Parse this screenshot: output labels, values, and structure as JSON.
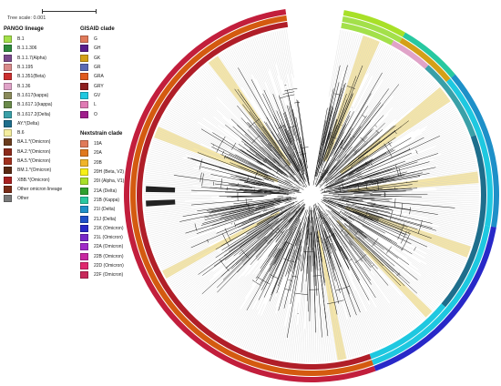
{
  "tree_scale": {
    "label": "Tree scale: 0.001"
  },
  "pango": {
    "title": "PANGO lineage",
    "items": [
      {
        "label": "B.1",
        "color": "#a3e04a"
      },
      {
        "label": "B.1.1.306",
        "color": "#2e8b3d"
      },
      {
        "label": "B.1.1.7(Alpha)",
        "color": "#7a4a8c"
      },
      {
        "label": "B.1.195",
        "color": "#d98a8a"
      },
      {
        "label": "B.1.351(Beta)",
        "color": "#cc2f2f"
      },
      {
        "label": "B.1.36",
        "color": "#e0a3c8"
      },
      {
        "label": "B.1.617(kappa)",
        "color": "#8a8a5a"
      },
      {
        "label": "B.1.617.1(kappa)",
        "color": "#6a8a4a"
      },
      {
        "label": "B.1.617.2(Delta)",
        "color": "#3aa0a8"
      },
      {
        "label": "AY.*(Delta)",
        "color": "#1e6e8c"
      },
      {
        "label": "B.6",
        "color": "#f5ee9e"
      },
      {
        "label": "BA.1.*(Omicron)",
        "color": "#6b3d1e"
      },
      {
        "label": "BA.2.*(Omicron)",
        "color": "#8c2a1a"
      },
      {
        "label": "BA.5.*(Omicron)",
        "color": "#a0301e"
      },
      {
        "label": "BM.1.*(Omicron)",
        "color": "#5a2a14"
      },
      {
        "label": "XBB.*(Omicron)",
        "color": "#a82020"
      },
      {
        "label": "Other omicron lineage",
        "color": "#7a2c18"
      },
      {
        "label": "Other",
        "color": "#7a7a7a"
      }
    ]
  },
  "gisaid": {
    "title": "GISAID clade",
    "items": [
      {
        "label": "G",
        "color": "#e07a5a"
      },
      {
        "label": "GH",
        "color": "#5a1e8c"
      },
      {
        "label": "GK",
        "color": "#d4a017"
      },
      {
        "label": "GR",
        "color": "#5a6ab4"
      },
      {
        "label": "GRA",
        "color": "#e05a1e"
      },
      {
        "label": "GRY",
        "color": "#8c1e1e"
      },
      {
        "label": "GV",
        "color": "#1ec8e0"
      },
      {
        "label": "L",
        "color": "#e07ab4"
      },
      {
        "label": "O",
        "color": "#a01e8c"
      }
    ]
  },
  "nextstrain": {
    "title": "Nextstrain clade",
    "items": [
      {
        "label": "19A",
        "color": "#e07a5a"
      },
      {
        "label": "20A",
        "color": "#e0781e"
      },
      {
        "label": "20B",
        "color": "#f0b428"
      },
      {
        "label": "20H (Beta, V2)",
        "color": "#f8f014"
      },
      {
        "label": "20I (Alpha, V1)",
        "color": "#a8e028"
      },
      {
        "label": "21A (Delta)",
        "color": "#2ea02e"
      },
      {
        "label": "21B (Kappa)",
        "color": "#28c8a0"
      },
      {
        "label": "21I (Delta)",
        "color": "#1e90c8"
      },
      {
        "label": "21J (Delta)",
        "color": "#1e50c8"
      },
      {
        "label": "21K (Omicron)",
        "color": "#2828c8"
      },
      {
        "label": "21L (Omicron)",
        "color": "#7828c8"
      },
      {
        "label": "22A (Omicron)",
        "color": "#a028c8"
      },
      {
        "label": "22B (Omicron)",
        "color": "#c828a0"
      },
      {
        "label": "22D (Omicron)",
        "color": "#e0286e"
      },
      {
        "label": "22F (Omicron)",
        "color": "#c8285a"
      }
    ]
  },
  "tree": {
    "ring_colors": {
      "outer": "#c21e3c",
      "middle": "#b01e28",
      "inner": "#d45a10",
      "highlight": "#f5e6a8",
      "branch": "#1a1a1a"
    }
  }
}
